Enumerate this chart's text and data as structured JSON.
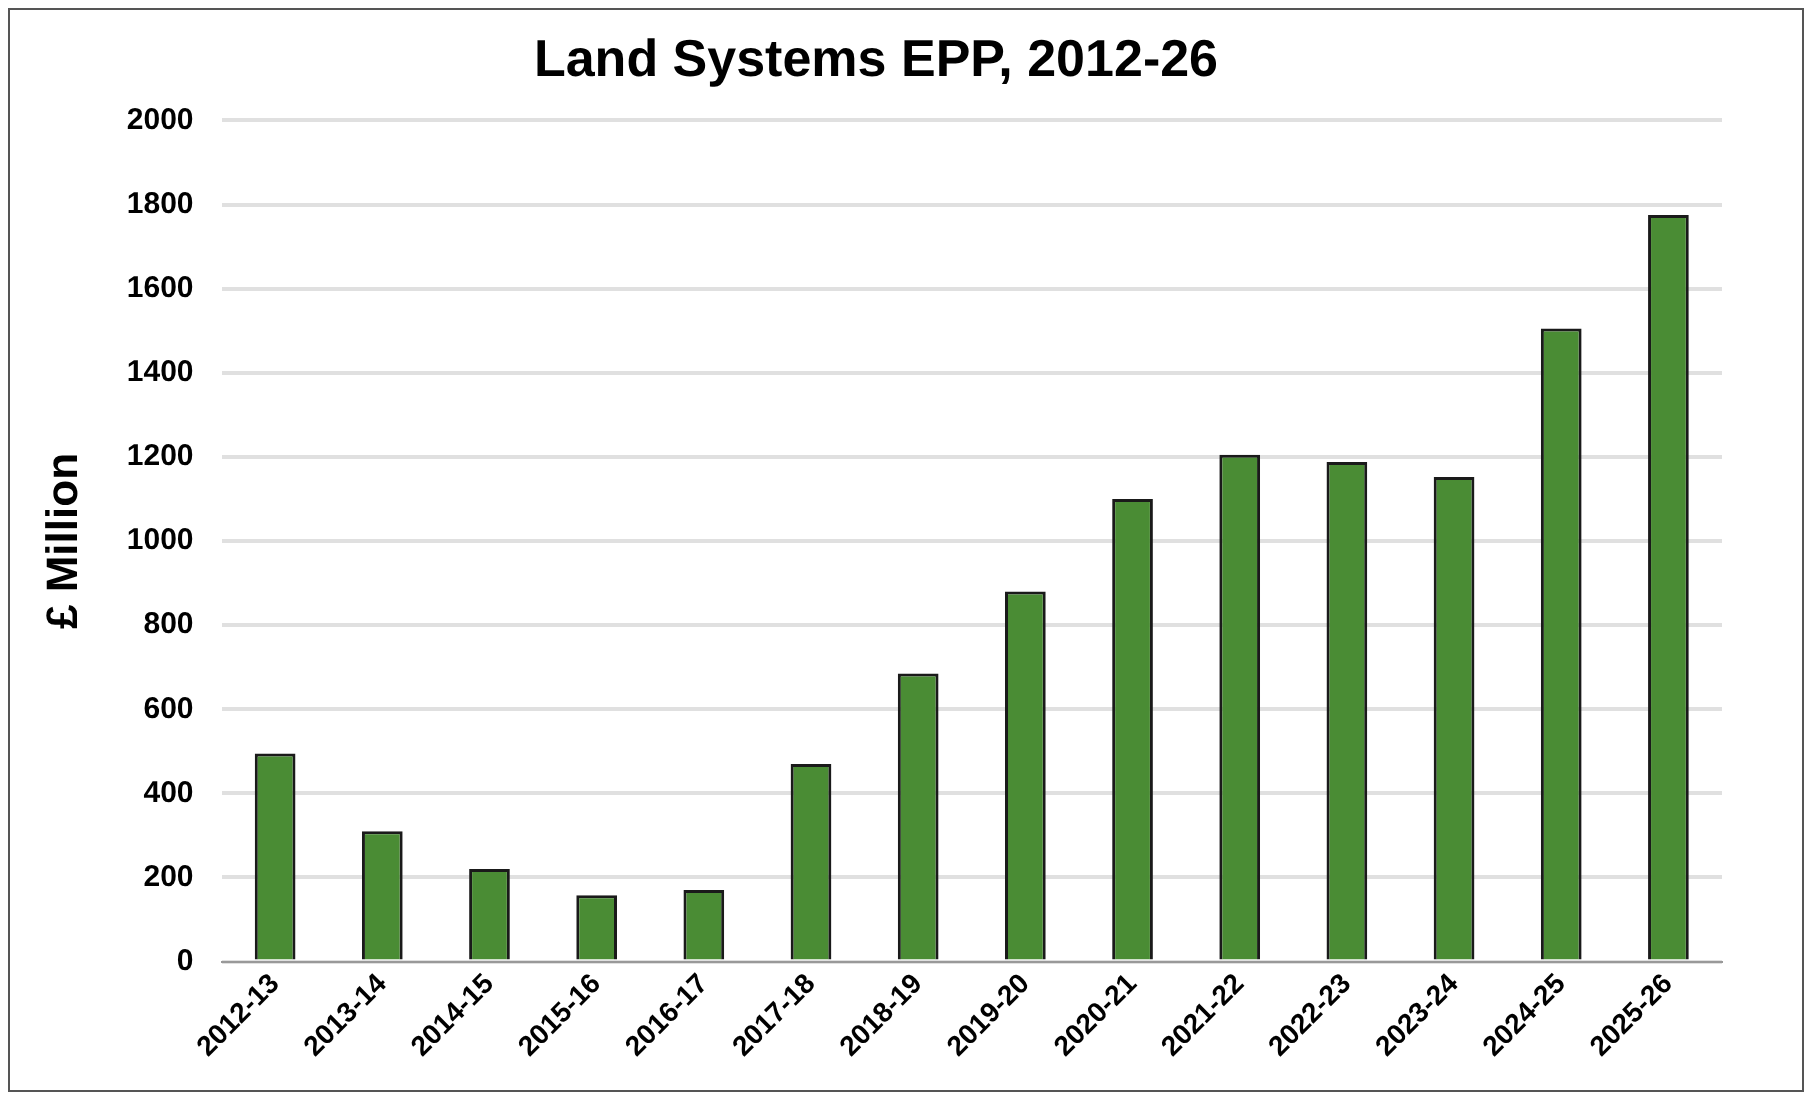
{
  "chart_data": {
    "type": "bar",
    "title": "Land Systems EPP, 2012-26",
    "ylabel": "£ Million",
    "categories": [
      "2012-13",
      "2013-14",
      "2014-15",
      "2015-16",
      "2016-17",
      "2017-18",
      "2018-19",
      "2019-20",
      "2020-21",
      "2021-22",
      "2022-23",
      "2023-24",
      "2024-25",
      "2025-26"
    ],
    "values": [
      495,
      310,
      220,
      158,
      170,
      470,
      685,
      880,
      1100,
      1205,
      1188,
      1152,
      1505,
      1775
    ],
    "color": "#4a8c34",
    "ylim": [
      0,
      2000
    ],
    "yticks": [
      0,
      200,
      400,
      600,
      800,
      1000,
      1200,
      1400,
      1600,
      1800,
      2000
    ],
    "grid": "y"
  }
}
